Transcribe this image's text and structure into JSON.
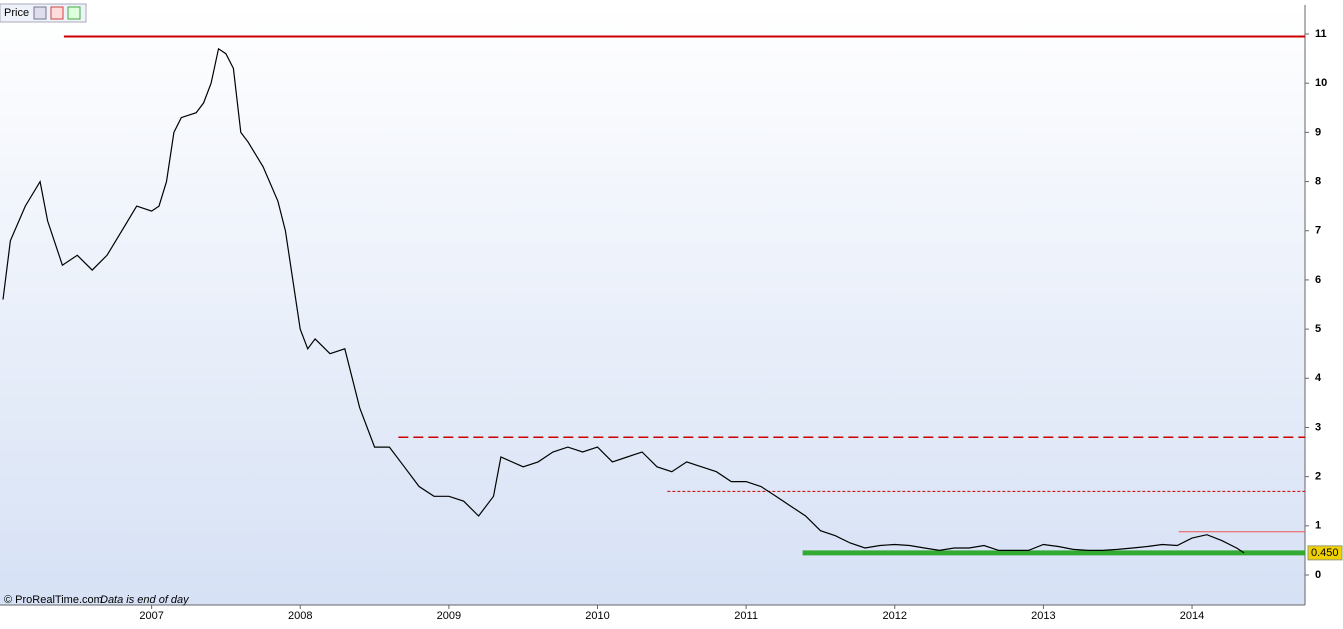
{
  "toolbar": {
    "label": "Price"
  },
  "footer": {
    "source": "© ProRealTime.com",
    "note": "Data is end of day"
  },
  "chart_data": {
    "type": "line",
    "x": [
      2006.0,
      2006.05,
      2006.15,
      2006.25,
      2006.3,
      2006.4,
      2006.5,
      2006.6,
      2006.7,
      2006.8,
      2006.9,
      2007.0,
      2007.05,
      2007.1,
      2007.15,
      2007.2,
      2007.3,
      2007.35,
      2007.4,
      2007.45,
      2007.5,
      2007.55,
      2007.6,
      2007.65,
      2007.75,
      2007.85,
      2007.9,
      2008.0,
      2008.05,
      2008.1,
      2008.2,
      2008.3,
      2008.4,
      2008.5,
      2008.6,
      2008.7,
      2008.8,
      2008.9,
      2009.0,
      2009.1,
      2009.2,
      2009.3,
      2009.35,
      2009.5,
      2009.6,
      2009.7,
      2009.8,
      2009.9,
      2010.0,
      2010.1,
      2010.2,
      2010.3,
      2010.4,
      2010.5,
      2010.6,
      2010.7,
      2010.8,
      2010.9,
      2011.0,
      2011.1,
      2011.2,
      2011.3,
      2011.4,
      2011.5,
      2011.6,
      2011.7,
      2011.8,
      2011.9,
      2012.0,
      2012.1,
      2012.2,
      2012.3,
      2012.4,
      2012.5,
      2012.6,
      2012.7,
      2012.8,
      2012.9,
      2013.0,
      2013.1,
      2013.2,
      2013.3,
      2013.4,
      2013.5,
      2013.6,
      2013.7,
      2013.8,
      2013.9,
      2014.0,
      2014.1,
      2014.2,
      2014.3,
      2014.35
    ],
    "series": [
      {
        "color": "#000000",
        "values": [
          5.6,
          6.8,
          7.5,
          8.0,
          7.2,
          6.3,
          6.5,
          6.2,
          6.5,
          7.0,
          7.5,
          7.4,
          7.5,
          8.0,
          9.0,
          9.3,
          9.4,
          9.6,
          10.0,
          10.7,
          10.6,
          10.3,
          9.0,
          8.8,
          8.3,
          7.6,
          7.0,
          5.0,
          4.6,
          4.8,
          4.5,
          4.6,
          3.4,
          2.6,
          2.6,
          2.2,
          1.8,
          1.6,
          1.6,
          1.5,
          1.2,
          1.6,
          2.4,
          2.2,
          2.3,
          2.5,
          2.6,
          2.5,
          2.6,
          2.3,
          2.4,
          2.5,
          2.2,
          2.1,
          2.3,
          2.2,
          2.1,
          1.9,
          1.9,
          1.8,
          1.6,
          1.4,
          1.2,
          0.9,
          0.8,
          0.65,
          0.55,
          0.6,
          0.62,
          0.6,
          0.55,
          0.5,
          0.55,
          0.55,
          0.6,
          0.5,
          0.5,
          0.5,
          0.62,
          0.58,
          0.52,
          0.5,
          0.5,
          0.52,
          0.55,
          0.58,
          0.62,
          0.6,
          0.75,
          0.82,
          0.7,
          0.55,
          0.45
        ]
      }
    ],
    "levels": [
      {
        "value": 10.95,
        "x_start": 2006.41,
        "color": "#cc0000",
        "style": "solid"
      },
      {
        "value": 2.8,
        "x_start": 2008.66,
        "color": "#cc0000",
        "style": "dashed"
      },
      {
        "value": 1.7,
        "x_start": 2010.47,
        "color": "#cc0000",
        "style": "dotted"
      },
      {
        "value": 0.45,
        "x_start": 2011.38,
        "color": "#33aa33",
        "style": "thick"
      },
      {
        "value": 0.88,
        "x_start": 2013.91,
        "color": "#ee5555",
        "style": "thin"
      }
    ],
    "last_value": 0.45,
    "last_value_label": "0.450",
    "xlim": [
      2005.98,
      2014.76
    ],
    "xticks": [
      2007,
      2008,
      2009,
      2010,
      2011,
      2012,
      2013,
      2014
    ],
    "ylim": [
      -0.61,
      11.59
    ],
    "yticks": [
      0,
      1,
      2,
      3,
      4,
      5,
      6,
      7,
      8,
      9,
      10,
      11
    ]
  }
}
